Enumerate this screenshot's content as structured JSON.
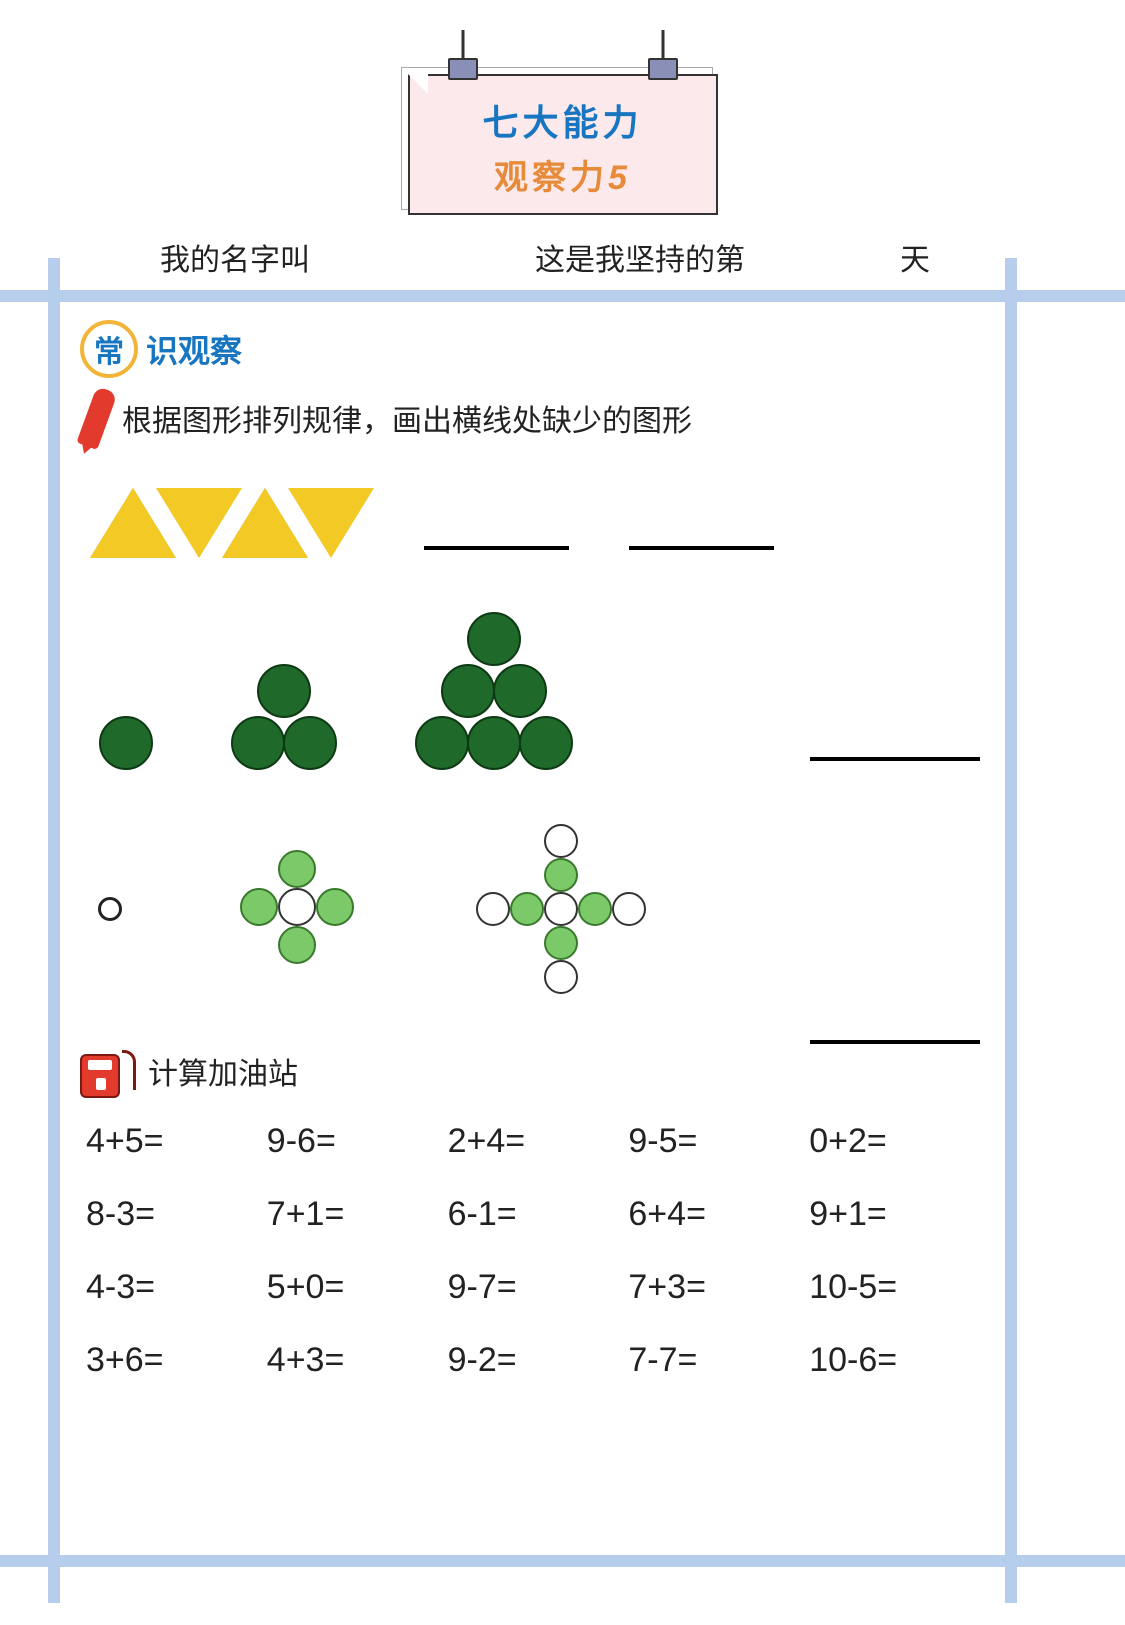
{
  "banner": {
    "line1": "七大能力",
    "line2_prefix": "观察力",
    "line2_num": "5"
  },
  "info": {
    "name_label": "我的名字叫",
    "day_label": "这是我坚持的第",
    "tian": "天"
  },
  "section1": {
    "badge": "常",
    "title": "识观察",
    "instruction": "根据图形排列规律，画出横线处缺少的图形",
    "row1": {
      "shapes": [
        "up",
        "down",
        "up",
        "down"
      ],
      "blanks": 2,
      "triangle_color": "#f2c925"
    },
    "row2": {
      "stacks": [
        1,
        3,
        6
      ],
      "blanks": 1,
      "circle_color": "#1f6a2a"
    },
    "row3": {
      "items": [
        "single",
        "plus5",
        "plus9"
      ],
      "blanks": 1,
      "fill_color": "#7cc96a"
    }
  },
  "section2": {
    "title": "计算加油站",
    "problems": [
      [
        "4+5=",
        "9-6=",
        "2+4=",
        "9-5=",
        "0+2="
      ],
      [
        "8-3=",
        "7+1=",
        "6-1=",
        "6+4=",
        "9+1="
      ],
      [
        "4-3=",
        "5+0=",
        "9-7=",
        "7+3=",
        "10-5="
      ],
      [
        "3+6=",
        "4+3=",
        "9-2=",
        "7-7=",
        "10-6="
      ]
    ]
  },
  "colors": {
    "frame": "#b7cdec",
    "title_blue": "#1876c1",
    "title_orange": "#e78b3a",
    "badge_ring": "#f2b53a",
    "pencil": "#e23b2e"
  }
}
